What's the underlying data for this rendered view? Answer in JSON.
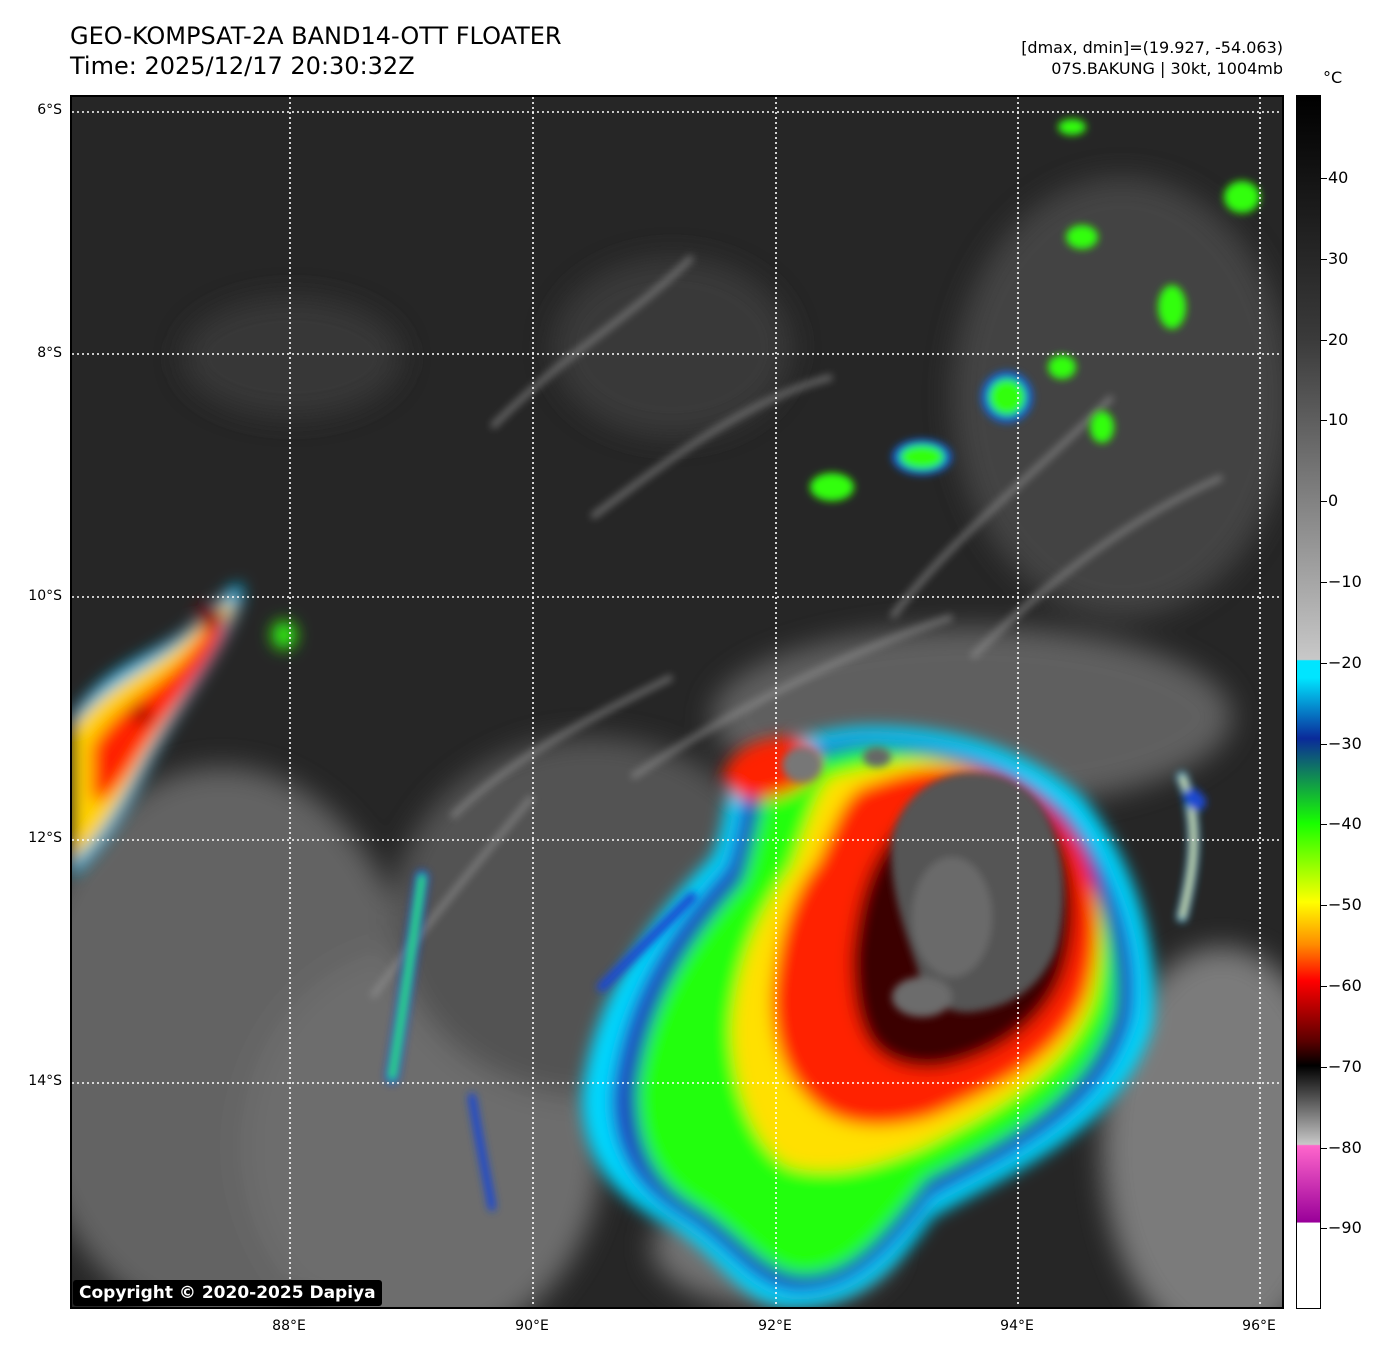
{
  "header": {
    "title": "GEO-KOMPSAT-2A BAND14-OTT FLOATER",
    "time": "Time: 2025/12/17 20:30:32Z",
    "range": "[dmax, dmin]=(19.927, -54.063)",
    "storm": "07S.BAKUNG | 30kt, 1004mb"
  },
  "map": {
    "lat_labels": [
      "6°S",
      "8°S",
      "10°S",
      "12°S",
      "14°S"
    ],
    "lon_labels": [
      "88°E",
      "90°E",
      "92°E",
      "94°E",
      "96°E"
    ],
    "copyright": "Copyright © 2020-2025 Dapiya"
  },
  "colorbar": {
    "unit": "°C",
    "ticks": [
      "40",
      "30",
      "20",
      "10",
      "0",
      "−10",
      "−20",
      "−30",
      "−40",
      "−50",
      "−60",
      "−70",
      "−80",
      "−90"
    ],
    "colors": {
      "black": "#000000",
      "dark_gray": "#3a3a3a",
      "light_gray": "#c8c8c8",
      "cyan": "#00e5ff",
      "blue": "#0a2a9a",
      "green": "#18ff00",
      "yellow": "#ffff00",
      "orange": "#ff8c00",
      "red": "#ff0000",
      "dark_red": "#5a0000",
      "magenta": "#ff66cc",
      "purple": "#990099",
      "white": "#ffffff"
    }
  }
}
